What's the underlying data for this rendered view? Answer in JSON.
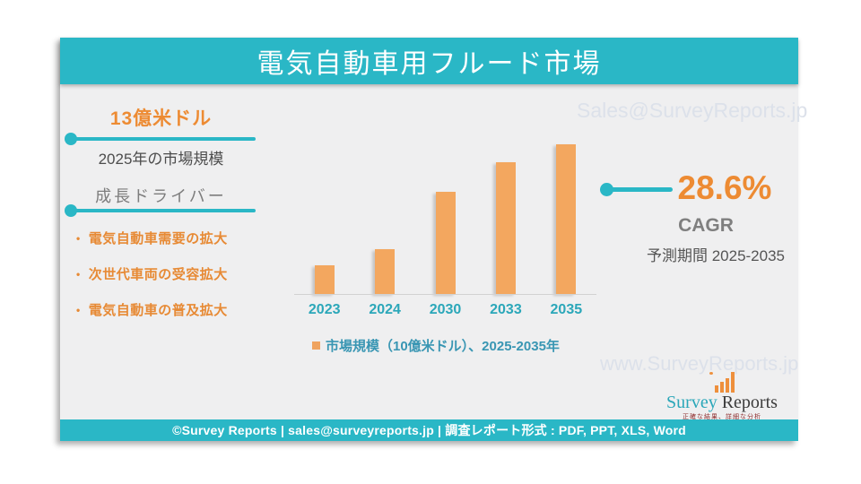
{
  "page": {
    "title": "電気自動車用フルード市場",
    "footer_text": "©Survey Reports | sales@surveyreports.jp |  調査レポート形式 : PDF, PPT, XLS, Word"
  },
  "left_panel": {
    "market_value": "13億米ドル",
    "market_value_label": "2025年の市場規模",
    "drivers_title": "成長ドライバー",
    "drivers": [
      "電気自動車需要の拡大",
      "次世代車両の受容拡大",
      "電気自動車の普及拡大"
    ]
  },
  "cagr": {
    "value": "28.6%",
    "label": "CAGR",
    "period": "予測期間 2025-2035"
  },
  "watermarks": {
    "top": "Sales@SurveyReports.jp",
    "bottom": "www.SurveyReports.jp"
  },
  "logo": {
    "name_primary": "Survey",
    "name_secondary": "Reports",
    "tagline": "正確な結果、詳細な分析"
  },
  "chart_data": {
    "type": "bar",
    "title": "電気自動車用フルード市場",
    "categories": [
      "2023",
      "2024",
      "2030",
      "2033",
      "2035"
    ],
    "values": [
      19,
      30,
      68,
      88,
      100
    ],
    "values_note": "no value axis shown; values estimated as percent of tallest bar (2035 = 100)",
    "legend": "市場規模（10億米ドル）、2025-2035年",
    "xlabel": "",
    "ylabel": "",
    "grid": false,
    "legend_position": "bottom",
    "bar_color": "#f3a75f",
    "label_color": "#2ba7b9"
  },
  "colors": {
    "teal": "#2ab7c6",
    "orange_accent": "#ed8b33",
    "bar_orange": "#f3a75f",
    "dark_gray_text": "#4d4d4d",
    "mid_gray_text": "#7f7f7f",
    "main_background": "#efeff0",
    "watermark_gray": "#dce1ea"
  }
}
